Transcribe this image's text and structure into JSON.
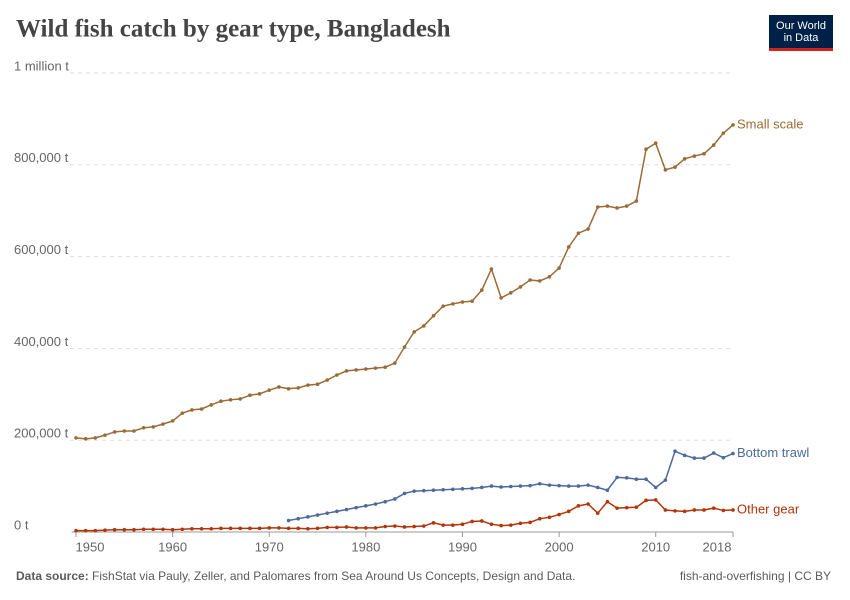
{
  "logo": "Our World in Data",
  "chart_data": {
    "type": "line",
    "title": "Wild fish catch by gear type, Bangladesh",
    "x": [
      1950,
      1951,
      1952,
      1953,
      1954,
      1955,
      1956,
      1957,
      1958,
      1959,
      1960,
      1961,
      1962,
      1963,
      1964,
      1965,
      1966,
      1967,
      1968,
      1969,
      1970,
      1971,
      1972,
      1973,
      1974,
      1975,
      1976,
      1977,
      1978,
      1979,
      1980,
      1981,
      1982,
      1983,
      1984,
      1985,
      1986,
      1987,
      1988,
      1989,
      1990,
      1991,
      1992,
      1993,
      1994,
      1995,
      1996,
      1997,
      1998,
      1999,
      2000,
      2001,
      2002,
      2003,
      2004,
      2005,
      2006,
      2007,
      2008,
      2009,
      2010,
      2011,
      2012,
      2013,
      2014,
      2015,
      2016,
      2017,
      2018
    ],
    "xlim": [
      1950,
      2018
    ],
    "xticks": [
      1950,
      1960,
      1970,
      1980,
      1990,
      2000,
      2010,
      2018
    ],
    "ylim": [
      0,
      1000000
    ],
    "yticks": [
      {
        "value": 0,
        "label": "0 t"
      },
      {
        "value": 200000,
        "label": "200,000 t"
      },
      {
        "value": 400000,
        "label": "400,000 t"
      },
      {
        "value": 600000,
        "label": "600,000 t"
      },
      {
        "value": 800000,
        "label": "800,000 t"
      },
      {
        "value": 1000000,
        "label": "1 million t"
      }
    ],
    "grid": true,
    "series": [
      {
        "name": "Small scale",
        "color": "#9a6b36",
        "values": [
          205000,
          203000,
          205000,
          211000,
          218000,
          220000,
          220000,
          227000,
          229000,
          235000,
          242000,
          259000,
          266000,
          268000,
          277000,
          285000,
          288000,
          290000,
          298000,
          301000,
          309000,
          316000,
          312000,
          314000,
          320000,
          322000,
          331000,
          342000,
          351000,
          353000,
          355000,
          357000,
          359000,
          368000,
          403000,
          436000,
          449000,
          471000,
          492000,
          497000,
          501000,
          503000,
          527000,
          573000,
          510000,
          521000,
          534000,
          549000,
          547000,
          556000,
          575000,
          621000,
          651000,
          660000,
          708000,
          710000,
          706000,
          710000,
          721000,
          834000,
          847000,
          789000,
          795000,
          813000,
          819000,
          824000,
          843000,
          869000,
          887000
        ]
      },
      {
        "name": "Bottom trawl",
        "color": "#4c6a9c",
        "values": [
          null,
          null,
          null,
          null,
          null,
          null,
          null,
          null,
          null,
          null,
          null,
          null,
          null,
          null,
          null,
          null,
          null,
          null,
          null,
          null,
          null,
          null,
          25000,
          29000,
          33000,
          37000,
          41000,
          45000,
          49000,
          53000,
          57000,
          61000,
          66000,
          72000,
          84000,
          89000,
          90000,
          91000,
          92000,
          93000,
          94000,
          95000,
          97000,
          100000,
          98000,
          99000,
          100000,
          101000,
          105000,
          102000,
          101000,
          100000,
          100000,
          102000,
          97000,
          91000,
          119000,
          118000,
          115000,
          115000,
          97000,
          113000,
          176000,
          167000,
          161000,
          161000,
          172000,
          162000,
          171000
        ]
      },
      {
        "name": "Other gear",
        "color": "#b13507",
        "values": [
          3000,
          3000,
          3000,
          4000,
          5000,
          5000,
          5000,
          6000,
          6000,
          6000,
          5000,
          6000,
          7000,
          7000,
          7000,
          8000,
          8000,
          8000,
          8000,
          8000,
          9000,
          9000,
          8000,
          8000,
          7000,
          8000,
          10000,
          10000,
          11000,
          9000,
          9000,
          9000,
          12000,
          13000,
          11000,
          12000,
          13000,
          20000,
          15000,
          15000,
          17000,
          23000,
          24000,
          17000,
          14000,
          15000,
          19000,
          21000,
          29000,
          32000,
          38000,
          45000,
          57000,
          61000,
          41000,
          66000,
          52000,
          53000,
          54000,
          69000,
          70000,
          48000,
          46000,
          45000,
          48000,
          48000,
          52000,
          47000,
          48000
        ]
      }
    ]
  },
  "footer": {
    "source_label": "Data source:",
    "source_text": "FishStat via Pauly, Zeller, and Palomares from Sea Around Us Concepts, Design and Data.",
    "right": "fish-and-overfishing | CC BY"
  }
}
